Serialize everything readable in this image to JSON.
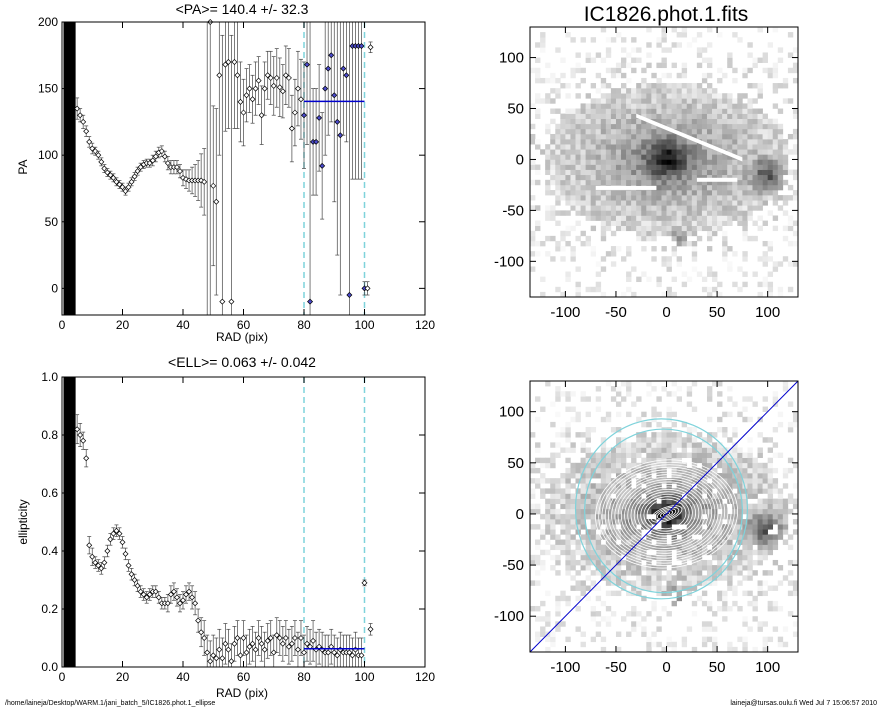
{
  "footer": {
    "left": "/home/laineja/Desktop/WARM.1/jani_batch_5/IC1826.phot.1_ellipse",
    "right": "laineja@tursas.oulu.fi  Wed Jul  7 15:06:57 2010"
  },
  "colors": {
    "mean_line": "#0000cc",
    "bound_line": "#7fd3db",
    "ellipse": "#7fd3db",
    "axis": "#000000"
  },
  "chart_data": [
    {
      "id": "pa",
      "type": "scatter",
      "title": "<PA>= 140.4 +/-  32.3",
      "xlabel": "RAD (pix)",
      "ylabel": "PA",
      "xlim": [
        0,
        120
      ],
      "ylim": [
        -20,
        200
      ],
      "xticks": [
        0,
        20,
        40,
        60,
        80,
        100,
        120
      ],
      "yticks": [
        0,
        50,
        100,
        150,
        200
      ],
      "mean": 140.4,
      "mean_range": [
        80,
        100
      ],
      "bounds": [
        80,
        100
      ],
      "band": [
        0.5,
        4.5
      ],
      "points": [
        [
          5,
          135,
          8
        ],
        [
          6,
          130,
          5
        ],
        [
          7,
          125,
          5
        ],
        [
          8,
          118,
          4
        ],
        [
          9,
          110,
          4
        ],
        [
          10,
          105,
          4
        ],
        [
          11,
          103,
          3
        ],
        [
          12,
          100,
          3
        ],
        [
          13,
          95,
          3
        ],
        [
          14,
          90,
          3
        ],
        [
          15,
          87,
          3
        ],
        [
          16,
          85,
          3
        ],
        [
          17,
          83,
          3
        ],
        [
          18,
          80,
          3
        ],
        [
          19,
          78,
          3
        ],
        [
          20,
          76,
          3
        ],
        [
          21,
          73,
          3
        ],
        [
          22,
          76,
          3
        ],
        [
          23,
          80,
          3
        ],
        [
          24,
          84,
          3
        ],
        [
          25,
          88,
          3
        ],
        [
          26,
          91,
          3
        ],
        [
          27,
          93,
          3
        ],
        [
          28,
          94,
          3
        ],
        [
          29,
          94,
          3
        ],
        [
          30,
          96,
          4
        ],
        [
          31,
          99,
          4
        ],
        [
          32,
          102,
          4
        ],
        [
          33,
          103,
          4
        ],
        [
          34,
          99,
          4
        ],
        [
          35,
          94,
          5
        ],
        [
          36,
          91,
          5
        ],
        [
          37,
          91,
          5
        ],
        [
          38,
          91,
          5
        ],
        [
          39,
          88,
          5
        ],
        [
          40,
          83,
          6
        ],
        [
          41,
          82,
          7
        ],
        [
          42,
          81,
          8
        ],
        [
          43,
          81,
          10
        ],
        [
          44,
          81,
          12
        ],
        [
          45,
          81,
          15
        ],
        [
          46,
          81,
          20
        ],
        [
          47,
          80,
          25
        ],
        [
          48,
          205,
          230
        ],
        [
          49,
          200,
          230
        ],
        [
          50,
          77,
          60
        ],
        [
          51,
          65,
          70
        ],
        [
          52,
          160,
          60
        ],
        [
          53,
          -10,
          200
        ],
        [
          54,
          168,
          50
        ],
        [
          55,
          170,
          50
        ],
        [
          56,
          -10,
          200
        ],
        [
          57,
          170,
          50
        ],
        [
          58,
          160,
          40
        ],
        [
          59,
          140,
          30
        ],
        [
          60,
          132,
          25
        ],
        [
          61,
          145,
          20
        ],
        [
          62,
          150,
          18
        ],
        [
          63,
          142,
          18
        ],
        [
          64,
          150,
          20
        ],
        [
          65,
          156,
          18
        ],
        [
          66,
          130,
          22
        ],
        [
          67,
          150,
          20
        ],
        [
          68,
          160,
          18
        ],
        [
          69,
          158,
          20
        ],
        [
          70,
          152,
          22
        ],
        [
          71,
          158,
          22
        ],
        [
          72,
          151,
          22
        ],
        [
          73,
          148,
          20
        ],
        [
          74,
          160,
          22
        ],
        [
          75,
          158,
          22
        ],
        [
          76,
          120,
          25
        ],
        [
          77,
          132,
          25
        ],
        [
          78,
          150,
          28
        ],
        [
          79,
          142,
          30
        ],
        [
          80,
          130,
          40
        ],
        [
          81,
          168,
          60
        ],
        [
          82,
          -10,
          230
        ],
        [
          83,
          110,
          40
        ],
        [
          84,
          110,
          40
        ],
        [
          85,
          128,
          40
        ],
        [
          86,
          92,
          40
        ],
        [
          87,
          150,
          50
        ],
        [
          88,
          165,
          50
        ],
        [
          89,
          175,
          50
        ],
        [
          90,
          145,
          80
        ],
        [
          91,
          125,
          100
        ],
        [
          92,
          115,
          120
        ],
        [
          93,
          165,
          50
        ],
        [
          94,
          160,
          50
        ],
        [
          95,
          -5,
          230
        ],
        [
          96,
          182,
          100
        ],
        [
          97,
          182,
          100
        ],
        [
          98,
          182,
          100
        ],
        [
          99,
          182,
          100
        ],
        [
          100,
          0,
          5
        ],
        [
          101,
          0,
          5
        ],
        [
          102,
          181,
          4
        ]
      ]
    },
    {
      "id": "ell",
      "type": "scatter",
      "title": "<ELL>= 0.063 +/-  0.042",
      "xlabel": "RAD (pix)",
      "ylabel": "ellipticity",
      "xlim": [
        0,
        120
      ],
      "ylim": [
        0,
        1
      ],
      "xticks": [
        0,
        20,
        40,
        60,
        80,
        100,
        120
      ],
      "yticks": [
        0.0,
        0.2,
        0.4,
        0.6,
        0.8,
        1.0
      ],
      "mean": 0.063,
      "mean_range": [
        80,
        100
      ],
      "bounds": [
        80,
        100
      ],
      "band": [
        0.5,
        4.5
      ],
      "points": [
        [
          5,
          0.82,
          0.05
        ],
        [
          6,
          0.8,
          0.04
        ],
        [
          7,
          0.78,
          0.03
        ],
        [
          8,
          0.72,
          0.03
        ],
        [
          9,
          0.42,
          0.03
        ],
        [
          10,
          0.38,
          0.03
        ],
        [
          11,
          0.36,
          0.02
        ],
        [
          12,
          0.35,
          0.02
        ],
        [
          13,
          0.34,
          0.02
        ],
        [
          14,
          0.36,
          0.02
        ],
        [
          15,
          0.4,
          0.02
        ],
        [
          16,
          0.44,
          0.02
        ],
        [
          17,
          0.46,
          0.02
        ],
        [
          18,
          0.47,
          0.02
        ],
        [
          19,
          0.46,
          0.02
        ],
        [
          20,
          0.43,
          0.02
        ],
        [
          21,
          0.39,
          0.02
        ],
        [
          22,
          0.35,
          0.02
        ],
        [
          23,
          0.32,
          0.02
        ],
        [
          24,
          0.3,
          0.02
        ],
        [
          25,
          0.28,
          0.02
        ],
        [
          26,
          0.26,
          0.02
        ],
        [
          27,
          0.25,
          0.02
        ],
        [
          28,
          0.24,
          0.02
        ],
        [
          29,
          0.25,
          0.02
        ],
        [
          30,
          0.26,
          0.02
        ],
        [
          31,
          0.26,
          0.02
        ],
        [
          32,
          0.24,
          0.02
        ],
        [
          33,
          0.22,
          0.02
        ],
        [
          34,
          0.22,
          0.02
        ],
        [
          35,
          0.22,
          0.03
        ],
        [
          36,
          0.25,
          0.03
        ],
        [
          37,
          0.26,
          0.03
        ],
        [
          38,
          0.24,
          0.03
        ],
        [
          39,
          0.22,
          0.03
        ],
        [
          40,
          0.23,
          0.03
        ],
        [
          41,
          0.25,
          0.03
        ],
        [
          42,
          0.26,
          0.03
        ],
        [
          43,
          0.24,
          0.04
        ],
        [
          44,
          0.22,
          0.04
        ],
        [
          45,
          0.16,
          0.04
        ],
        [
          46,
          0.12,
          0.05
        ],
        [
          47,
          0.1,
          0.06
        ],
        [
          48,
          0.05,
          0.06
        ],
        [
          49,
          0.02,
          0.07
        ],
        [
          50,
          0.04,
          0.07
        ],
        [
          51,
          0.03,
          0.07
        ],
        [
          52,
          0.06,
          0.07
        ],
        [
          53,
          0.03,
          0.07
        ],
        [
          54,
          0.08,
          0.07
        ],
        [
          55,
          0.06,
          0.07
        ],
        [
          56,
          0.02,
          0.06
        ],
        [
          57,
          0.08,
          0.06
        ],
        [
          58,
          0.1,
          0.06
        ],
        [
          59,
          0.04,
          0.06
        ],
        [
          60,
          0.1,
          0.06
        ],
        [
          61,
          0.05,
          0.06
        ],
        [
          62,
          0.07,
          0.06
        ],
        [
          63,
          0.08,
          0.06
        ],
        [
          64,
          0.06,
          0.06
        ],
        [
          65,
          0.1,
          0.06
        ],
        [
          66,
          0.08,
          0.06
        ],
        [
          67,
          0.06,
          0.06
        ],
        [
          68,
          0.09,
          0.06
        ],
        [
          69,
          0.1,
          0.06
        ],
        [
          70,
          0.05,
          0.06
        ],
        [
          71,
          0.11,
          0.06
        ],
        [
          72,
          0.1,
          0.06
        ],
        [
          73,
          0.08,
          0.06
        ],
        [
          74,
          0.1,
          0.06
        ],
        [
          75,
          0.07,
          0.06
        ],
        [
          76,
          0.08,
          0.06
        ],
        [
          77,
          0.1,
          0.06
        ],
        [
          78,
          0.06,
          0.06
        ],
        [
          79,
          0.1,
          0.06
        ],
        [
          80,
          0.05,
          0.06
        ],
        [
          81,
          0.08,
          0.06
        ],
        [
          82,
          0.07,
          0.06
        ],
        [
          83,
          0.09,
          0.07
        ],
        [
          84,
          0.06,
          0.06
        ],
        [
          85,
          0.07,
          0.06
        ],
        [
          86,
          0.06,
          0.06
        ],
        [
          87,
          0.05,
          0.06
        ],
        [
          88,
          0.05,
          0.06
        ],
        [
          89,
          0.07,
          0.06
        ],
        [
          90,
          0.05,
          0.06
        ],
        [
          91,
          0.04,
          0.06
        ],
        [
          92,
          0.06,
          0.06
        ],
        [
          93,
          0.05,
          0.06
        ],
        [
          94,
          0.05,
          0.06
        ],
        [
          95,
          0.05,
          0.06
        ],
        [
          96,
          0.04,
          0.06
        ],
        [
          97,
          0.06,
          0.06
        ],
        [
          98,
          0.04,
          0.06
        ],
        [
          99,
          0.04,
          0.06
        ],
        [
          100,
          0.29,
          0.01
        ],
        [
          102,
          0.13,
          0.02
        ]
      ]
    },
    {
      "id": "img",
      "type": "heatmap",
      "title": "IC1826.phot.1.fits",
      "xlim": [
        -135,
        130
      ],
      "ylim": [
        -135,
        130
      ],
      "xticks": [
        -100,
        -50,
        0,
        50,
        100
      ],
      "yticks": [
        -100,
        -50,
        0,
        50,
        100
      ]
    },
    {
      "id": "iso",
      "type": "heatmap",
      "xlim": [
        -135,
        130
      ],
      "ylim": [
        -135,
        130
      ],
      "xticks": [
        -100,
        -50,
        0,
        50,
        100
      ],
      "yticks": [
        -100,
        -50,
        0,
        50,
        100
      ],
      "pa_line": 140.4
    }
  ]
}
